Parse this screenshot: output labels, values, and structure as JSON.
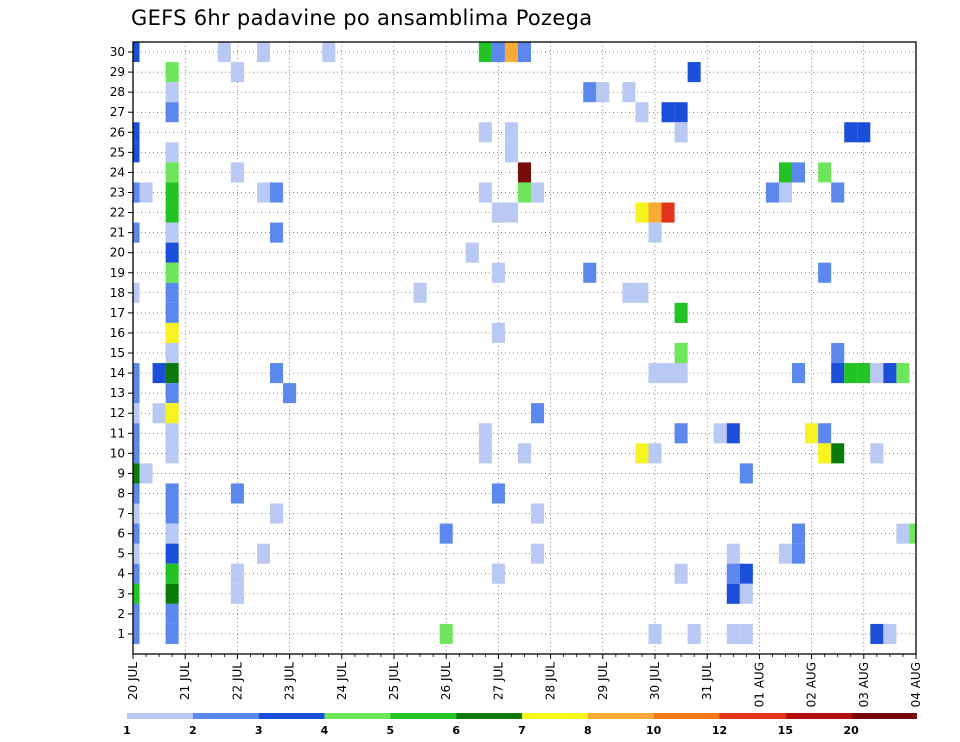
{
  "chart_data": {
    "type": "heatmap",
    "title": "GEFS 6hr padavine po ansamblima Pozega",
    "xlabel": "",
    "ylabel": "",
    "x_tick_labels": [
      "20 JUL",
      "21 JUL",
      "22 JUL",
      "23 JUL",
      "24 JUL",
      "25 JUL",
      "26 JUL",
      "27 JUL",
      "28 JUL",
      "29 JUL",
      "30 JUL",
      "31 JUL",
      "01 AUG",
      "02 AUG",
      "03 AUG",
      "04 AUG"
    ],
    "y_tick_labels": [
      "1",
      "2",
      "3",
      "4",
      "5",
      "6",
      "7",
      "8",
      "9",
      "10",
      "11",
      "12",
      "13",
      "14",
      "15",
      "16",
      "17",
      "18",
      "19",
      "20",
      "21",
      "22",
      "23",
      "24",
      "25",
      "26",
      "27",
      "28",
      "29",
      "30"
    ],
    "xlim_days": [
      0,
      15
    ],
    "ylim_members": [
      0,
      30
    ],
    "grid": true,
    "colorbar": {
      "levels": [
        "1",
        "2",
        "3",
        "4",
        "5",
        "6",
        "7",
        "8",
        "10",
        "12",
        "15",
        "20"
      ],
      "colors": [
        "#b9c9f3",
        "#5b88ec",
        "#1c4fd9",
        "#6ee65c",
        "#22c322",
        "#0b7a0b",
        "#f6f31f",
        "#f9ab35",
        "#f77818",
        "#e3331a",
        "#b50e0e",
        "#780a0a"
      ]
    },
    "cells": [
      {
        "day": 0.0,
        "m": 30,
        "c": 3
      },
      {
        "day": 1.75,
        "m": 30,
        "c": 1
      },
      {
        "day": 2.5,
        "m": 30,
        "c": 1
      },
      {
        "day": 3.75,
        "m": 30,
        "c": 1
      },
      {
        "day": 6.75,
        "m": 30,
        "c": 5
      },
      {
        "day": 7.0,
        "m": 30,
        "c": 2
      },
      {
        "day": 7.25,
        "m": 30,
        "c": 8
      },
      {
        "day": 7.5,
        "m": 30,
        "c": 2
      },
      {
        "day": 0.75,
        "m": 29,
        "c": 4
      },
      {
        "day": 2.0,
        "m": 29,
        "c": 1
      },
      {
        "day": 10.75,
        "m": 29,
        "c": 3
      },
      {
        "day": 0.75,
        "m": 28,
        "c": 1
      },
      {
        "day": 8.75,
        "m": 28,
        "c": 2
      },
      {
        "day": 9.0,
        "m": 28,
        "c": 1
      },
      {
        "day": 9.5,
        "m": 28,
        "c": 1
      },
      {
        "day": 0.75,
        "m": 27,
        "c": 2
      },
      {
        "day": 9.75,
        "m": 27,
        "c": 1
      },
      {
        "day": 10.25,
        "m": 27,
        "c": 3
      },
      {
        "day": 10.5,
        "m": 27,
        "c": 3
      },
      {
        "day": 0.0,
        "m": 26,
        "c": 3
      },
      {
        "day": 6.75,
        "m": 26,
        "c": 1
      },
      {
        "day": 7.25,
        "m": 26,
        "c": 1
      },
      {
        "day": 10.5,
        "m": 26,
        "c": 1
      },
      {
        "day": 13.75,
        "m": 26,
        "c": 3
      },
      {
        "day": 14.0,
        "m": 26,
        "c": 3
      },
      {
        "day": 0.0,
        "m": 25,
        "c": 3
      },
      {
        "day": 0.75,
        "m": 25,
        "c": 1
      },
      {
        "day": 7.25,
        "m": 25,
        "c": 1
      },
      {
        "day": 0.75,
        "m": 24,
        "c": 4
      },
      {
        "day": 2.0,
        "m": 24,
        "c": 1
      },
      {
        "day": 7.5,
        "m": 24,
        "c": 12
      },
      {
        "day": 12.5,
        "m": 24,
        "c": 5
      },
      {
        "day": 12.75,
        "m": 24,
        "c": 2
      },
      {
        "day": 13.25,
        "m": 24,
        "c": 4
      },
      {
        "day": 0.0,
        "m": 23,
        "c": 2
      },
      {
        "day": 0.25,
        "m": 23,
        "c": 1
      },
      {
        "day": 0.75,
        "m": 23,
        "c": 5
      },
      {
        "day": 2.5,
        "m": 23,
        "c": 1
      },
      {
        "day": 2.75,
        "m": 23,
        "c": 2
      },
      {
        "day": 6.75,
        "m": 23,
        "c": 1
      },
      {
        "day": 7.5,
        "m": 23,
        "c": 4
      },
      {
        "day": 7.75,
        "m": 23,
        "c": 1
      },
      {
        "day": 12.25,
        "m": 23,
        "c": 2
      },
      {
        "day": 12.5,
        "m": 23,
        "c": 1
      },
      {
        "day": 13.5,
        "m": 23,
        "c": 2
      },
      {
        "day": 0.75,
        "m": 22,
        "c": 5
      },
      {
        "day": 7.0,
        "m": 22,
        "c": 1
      },
      {
        "day": 7.25,
        "m": 22,
        "c": 1
      },
      {
        "day": 9.75,
        "m": 22,
        "c": 7
      },
      {
        "day": 10.0,
        "m": 22,
        "c": 8
      },
      {
        "day": 10.25,
        "m": 22,
        "c": 10
      },
      {
        "day": 0.0,
        "m": 21,
        "c": 2
      },
      {
        "day": 0.75,
        "m": 21,
        "c": 1
      },
      {
        "day": 2.75,
        "m": 21,
        "c": 2
      },
      {
        "day": 10.0,
        "m": 21,
        "c": 1
      },
      {
        "day": 0.75,
        "m": 20,
        "c": 3
      },
      {
        "day": 6.5,
        "m": 20,
        "c": 1
      },
      {
        "day": 0.75,
        "m": 19,
        "c": 4
      },
      {
        "day": 7.0,
        "m": 19,
        "c": 1
      },
      {
        "day": 8.75,
        "m": 19,
        "c": 2
      },
      {
        "day": 13.25,
        "m": 19,
        "c": 2
      },
      {
        "day": 0.0,
        "m": 18,
        "c": 1
      },
      {
        "day": 0.75,
        "m": 18,
        "c": 2
      },
      {
        "day": 5.5,
        "m": 18,
        "c": 1
      },
      {
        "day": 9.5,
        "m": 18,
        "c": 1
      },
      {
        "day": 9.75,
        "m": 18,
        "c": 1
      },
      {
        "day": 0.75,
        "m": 17,
        "c": 2
      },
      {
        "day": 10.5,
        "m": 17,
        "c": 5
      },
      {
        "day": 0.75,
        "m": 16,
        "c": 7
      },
      {
        "day": 7.0,
        "m": 16,
        "c": 1
      },
      {
        "day": 0.75,
        "m": 15,
        "c": 1
      },
      {
        "day": 10.5,
        "m": 15,
        "c": 4
      },
      {
        "day": 13.5,
        "m": 15,
        "c": 2
      },
      {
        "day": 0.0,
        "m": 14,
        "c": 2
      },
      {
        "day": 0.5,
        "m": 14,
        "c": 3
      },
      {
        "day": 0.75,
        "m": 14,
        "c": 6
      },
      {
        "day": 2.75,
        "m": 14,
        "c": 2
      },
      {
        "day": 10.0,
        "m": 14,
        "c": 1
      },
      {
        "day": 10.25,
        "m": 14,
        "c": 1
      },
      {
        "day": 10.5,
        "m": 14,
        "c": 1
      },
      {
        "day": 12.75,
        "m": 14,
        "c": 2
      },
      {
        "day": 13.5,
        "m": 14,
        "c": 3
      },
      {
        "day": 13.75,
        "m": 14,
        "c": 5
      },
      {
        "day": 14.0,
        "m": 14,
        "c": 5
      },
      {
        "day": 14.25,
        "m": 14,
        "c": 1
      },
      {
        "day": 14.5,
        "m": 14,
        "c": 3
      },
      {
        "day": 14.75,
        "m": 14,
        "c": 4
      },
      {
        "day": 0.0,
        "m": 13,
        "c": 2
      },
      {
        "day": 0.75,
        "m": 13,
        "c": 2
      },
      {
        "day": 3.0,
        "m": 13,
        "c": 2
      },
      {
        "day": 0.0,
        "m": 12,
        "c": 1
      },
      {
        "day": 0.5,
        "m": 12,
        "c": 1
      },
      {
        "day": 0.75,
        "m": 12,
        "c": 7
      },
      {
        "day": 7.75,
        "m": 12,
        "c": 2
      },
      {
        "day": 0.0,
        "m": 11,
        "c": 2
      },
      {
        "day": 0.75,
        "m": 11,
        "c": 1
      },
      {
        "day": 6.75,
        "m": 11,
        "c": 1
      },
      {
        "day": 10.5,
        "m": 11,
        "c": 2
      },
      {
        "day": 11.25,
        "m": 11,
        "c": 1
      },
      {
        "day": 11.5,
        "m": 11,
        "c": 3
      },
      {
        "day": 13.0,
        "m": 11,
        "c": 7
      },
      {
        "day": 13.25,
        "m": 11,
        "c": 2
      },
      {
        "day": 0.0,
        "m": 10,
        "c": 2
      },
      {
        "day": 0.75,
        "m": 10,
        "c": 1
      },
      {
        "day": 6.75,
        "m": 10,
        "c": 1
      },
      {
        "day": 7.5,
        "m": 10,
        "c": 1
      },
      {
        "day": 9.75,
        "m": 10,
        "c": 7
      },
      {
        "day": 10.0,
        "m": 10,
        "c": 1
      },
      {
        "day": 13.25,
        "m": 10,
        "c": 7
      },
      {
        "day": 13.5,
        "m": 10,
        "c": 6
      },
      {
        "day": 14.25,
        "m": 10,
        "c": 1
      },
      {
        "day": 0.0,
        "m": 9,
        "c": 6
      },
      {
        "day": 0.25,
        "m": 9,
        "c": 1
      },
      {
        "day": 11.75,
        "m": 9,
        "c": 2
      },
      {
        "day": 0.0,
        "m": 8,
        "c": 2
      },
      {
        "day": 0.75,
        "m": 8,
        "c": 2
      },
      {
        "day": 2.0,
        "m": 8,
        "c": 2
      },
      {
        "day": 7.0,
        "m": 8,
        "c": 2
      },
      {
        "day": 0.0,
        "m": 7,
        "c": 1
      },
      {
        "day": 0.75,
        "m": 7,
        "c": 2
      },
      {
        "day": 2.75,
        "m": 7,
        "c": 1
      },
      {
        "day": 7.75,
        "m": 7,
        "c": 1
      },
      {
        "day": 0.0,
        "m": 6,
        "c": 2
      },
      {
        "day": 0.75,
        "m": 6,
        "c": 1
      },
      {
        "day": 6.0,
        "m": 6,
        "c": 2
      },
      {
        "day": 12.75,
        "m": 6,
        "c": 2
      },
      {
        "day": 14.75,
        "m": 6,
        "c": 1
      },
      {
        "day": 15.0,
        "m": 6,
        "c": 4
      },
      {
        "day": 0.0,
        "m": 5,
        "c": 1
      },
      {
        "day": 0.75,
        "m": 5,
        "c": 3
      },
      {
        "day": 2.5,
        "m": 5,
        "c": 1
      },
      {
        "day": 7.75,
        "m": 5,
        "c": 1
      },
      {
        "day": 11.5,
        "m": 5,
        "c": 1
      },
      {
        "day": 12.5,
        "m": 5,
        "c": 1
      },
      {
        "day": 12.75,
        "m": 5,
        "c": 2
      },
      {
        "day": 0.0,
        "m": 4,
        "c": 2
      },
      {
        "day": 0.75,
        "m": 4,
        "c": 5
      },
      {
        "day": 2.0,
        "m": 4,
        "c": 1
      },
      {
        "day": 7.0,
        "m": 4,
        "c": 1
      },
      {
        "day": 10.5,
        "m": 4,
        "c": 1
      },
      {
        "day": 11.5,
        "m": 4,
        "c": 2
      },
      {
        "day": 11.75,
        "m": 4,
        "c": 3
      },
      {
        "day": 0.0,
        "m": 3,
        "c": 5
      },
      {
        "day": 0.75,
        "m": 3,
        "c": 6
      },
      {
        "day": 2.0,
        "m": 3,
        "c": 1
      },
      {
        "day": 11.5,
        "m": 3,
        "c": 3
      },
      {
        "day": 11.75,
        "m": 3,
        "c": 1
      },
      {
        "day": 0.0,
        "m": 2,
        "c": 2
      },
      {
        "day": 0.75,
        "m": 2,
        "c": 2
      },
      {
        "day": 0.0,
        "m": 1,
        "c": 2
      },
      {
        "day": 0.75,
        "m": 1,
        "c": 2
      },
      {
        "day": 6.0,
        "m": 1,
        "c": 4
      },
      {
        "day": 10.0,
        "m": 1,
        "c": 1
      },
      {
        "day": 10.75,
        "m": 1,
        "c": 1
      },
      {
        "day": 11.5,
        "m": 1,
        "c": 1
      },
      {
        "day": 11.75,
        "m": 1,
        "c": 1
      },
      {
        "day": 14.25,
        "m": 1,
        "c": 3
      },
      {
        "day": 14.5,
        "m": 1,
        "c": 1
      }
    ]
  }
}
